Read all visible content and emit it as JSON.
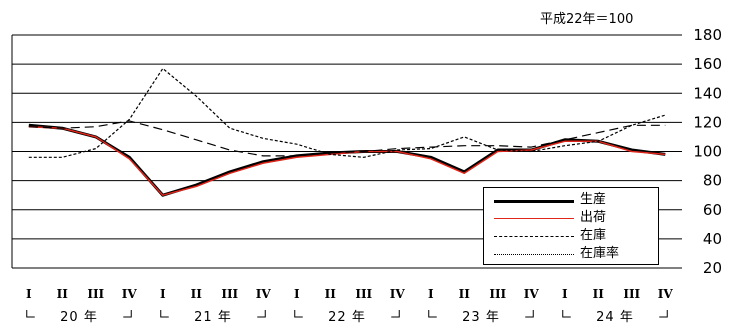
{
  "note": "平成22年＝100",
  "chart_data": {
    "type": "line",
    "ylim": [
      20,
      180
    ],
    "yticks": [
      20,
      40,
      60,
      80,
      100,
      120,
      140,
      160,
      180
    ],
    "quarter_labels": [
      "I",
      "II",
      "III",
      "IV",
      "I",
      "II",
      "III",
      "IV",
      "I",
      "II",
      "III",
      "IV",
      "I",
      "II",
      "III",
      "IV",
      "I",
      "II",
      "III",
      "IV"
    ],
    "year_labels": [
      "20 年",
      "21 年",
      "22 年",
      "23 年",
      "24 年"
    ],
    "series": [
      {
        "name": "生産",
        "color": "#000000",
        "dash": "",
        "width": 3,
        "values": [
          118,
          116,
          110,
          96,
          70,
          77,
          86,
          93,
          97,
          99,
          100,
          100,
          96,
          86,
          101,
          101,
          108,
          107,
          101,
          98
        ]
      },
      {
        "name": "出荷",
        "color": "#e0261a",
        "dash": "",
        "width": 1.5,
        "values": [
          117,
          116,
          110,
          95,
          70,
          76,
          85,
          92,
          96,
          98,
          100,
          100,
          95,
          85,
          100,
          101,
          107,
          107,
          100,
          98
        ]
      },
      {
        "name": "在庫",
        "color": "#000000",
        "dash": "9,5",
        "width": 1.2,
        "values": [
          117,
          116,
          117,
          121,
          115,
          108,
          101,
          97,
          97,
          99,
          100,
          102,
          103,
          104,
          104,
          103,
          108,
          113,
          118,
          118
        ]
      },
      {
        "name": "在庫率",
        "color": "#000000",
        "dash": "3,2",
        "width": 1.2,
        "values": [
          96,
          96,
          102,
          122,
          157,
          138,
          116,
          109,
          105,
          98,
          96,
          101,
          102,
          110,
          101,
          100,
          104,
          107,
          118,
          125
        ]
      }
    ]
  }
}
